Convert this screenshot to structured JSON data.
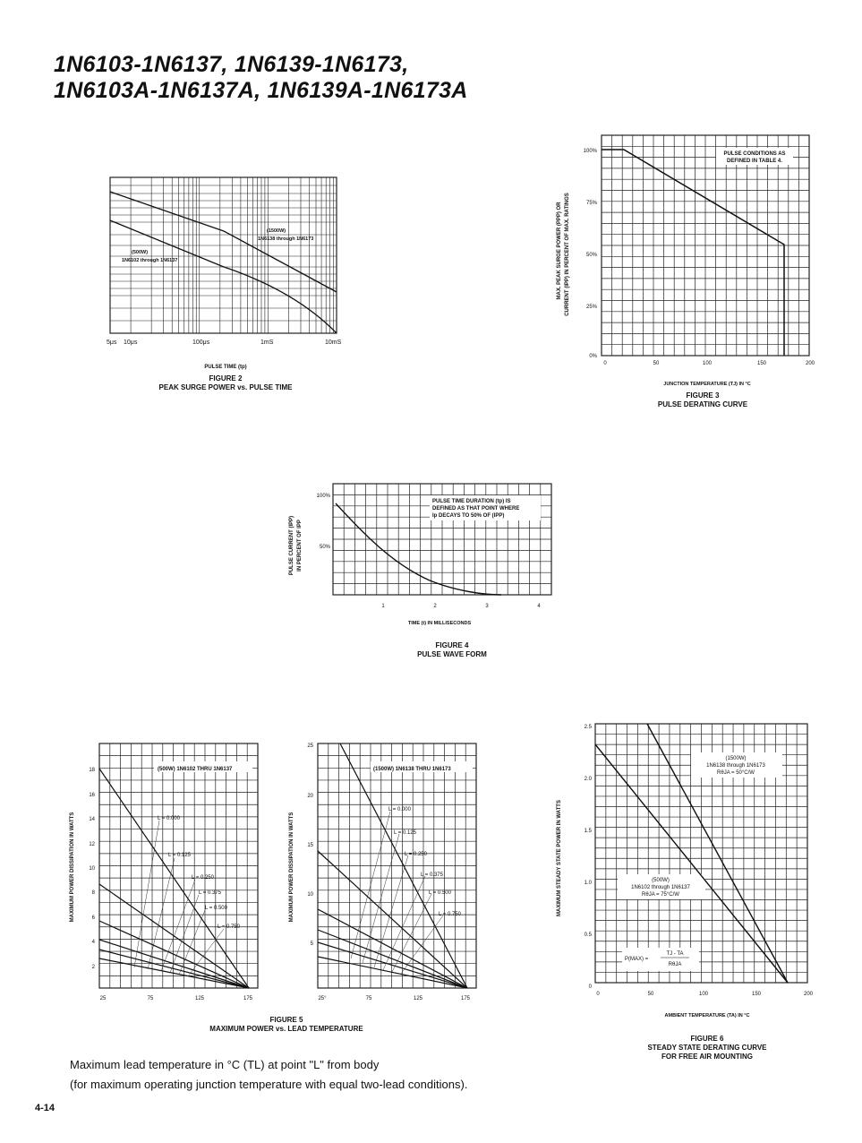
{
  "title": {
    "line1": "1N6103-1N6137, 1N6139-1N6173,",
    "line2": "1N6103A-1N6137A, 1N6139A-1N6173A"
  },
  "fig2": {
    "caption_number": "FIGURE 2",
    "caption_title": "PEAK SURGE POWER vs. PULSE TIME",
    "xlabel": "PULSE TIME (tp)",
    "x_ticks": [
      "5μs",
      "10μs",
      "100μs",
      "1mS",
      "10mS"
    ],
    "annotation_1500w": [
      "(1500W)",
      "1N6138 through 1N6173"
    ],
    "annotation_500w": [
      "(500W)",
      "1N6102 through 1N6137"
    ]
  },
  "fig3": {
    "caption_number": "FIGURE 3",
    "caption_title": "PULSE DERATING CURVE",
    "xlabel": "JUNCTION TEMPERATURE (TJ) IN °C",
    "ylabel_1": "MAX. PEAK SURGE POWER (PPP) OR",
    "ylabel_2": "CURRENT (IPP) IN PERCENT OF MAX. RATINGS",
    "y_ticks": [
      "100%",
      "75%",
      "50%",
      "25%",
      "0%"
    ],
    "x_ticks": [
      "0",
      "50",
      "100",
      "150",
      "200"
    ],
    "note": [
      "PULSE CONDITIONS AS",
      "DEFINED IN TABLE 4."
    ]
  },
  "fig4": {
    "caption_number": "FIGURE 4",
    "caption_title": "PULSE WAVE FORM",
    "xlabel": "TIME (t) IN MILLISECONDS",
    "ylabel_1": "PULSE CURRENT (IPP)",
    "ylabel_2": "IN PERCENT OF IPP",
    "y_ticks": [
      "100%",
      "50%"
    ],
    "x_ticks": [
      "1",
      "2",
      "3",
      "4"
    ],
    "note": [
      "PULSE TIME DURATION (tp) IS",
      "DEFINED AS THAT POINT WHERE",
      "Ip DECAYS TO 50% OF (IPP)"
    ]
  },
  "fig5": {
    "caption_number": "FIGURE 5",
    "caption_title": "MAXIMUM POWER vs. LEAD TEMPERATURE",
    "ylabel": "MAXIMUM POWER DISSIPATION IN WATTS",
    "left": {
      "series_label": "(500W) 1N6102 THRU 1N6137",
      "y_ticks": [
        "18",
        "16",
        "14",
        "12",
        "10",
        "8",
        "6",
        "4",
        "2"
      ],
      "x_ticks": [
        "25",
        "75",
        "125",
        "175"
      ],
      "curves": [
        "L = 0.000",
        "L = 0.125",
        "L = 0.250",
        "L = 0.375",
        "L = 0.500",
        "L = 0.750"
      ]
    },
    "right": {
      "series_label": "(1500W) 1N6138 THRU 1N6173",
      "y_ticks": [
        "25",
        "20",
        "15",
        "10",
        "5"
      ],
      "x_ticks": [
        "25°",
        "75",
        "125",
        "175"
      ],
      "curves": [
        "L = 0.000",
        "L = 0.125",
        "L = 0.250",
        "L = 0.375",
        "L = 0.500",
        "L = 0.750"
      ]
    }
  },
  "fig6": {
    "caption_number": "FIGURE 6",
    "caption_title": "STEADY STATE DERATING CURVE",
    "caption_title2": "FOR FREE AIR MOUNTING",
    "xlabel": "AMBIENT TEMPERATURE (TA) IN °C",
    "ylabel": "MAXIMUM STEADY STATE POWER IN WATTS",
    "y_ticks": [
      "2.5",
      "2.0",
      "1.5",
      "1.0",
      "0.5",
      "0"
    ],
    "x_ticks": [
      "0",
      "50",
      "100",
      "150",
      "200"
    ],
    "annotation_1500w": [
      "(1500W)",
      "1N6138 through 1N6173",
      "RθJA = 50°C/W"
    ],
    "annotation_500w": [
      "(500W)",
      "1N6102 through 1N6137",
      "RθJA = 75°C/W"
    ],
    "formula": [
      "P(MAX) =",
      "TJ - TA",
      "RθJA"
    ]
  },
  "footnote": {
    "line1": "Maximum lead temperature in °C (TL) at point \"L\" from body",
    "line2": "(for maximum operating junction temperature with equal two-lead conditions)."
  },
  "page_number": "4-14"
}
